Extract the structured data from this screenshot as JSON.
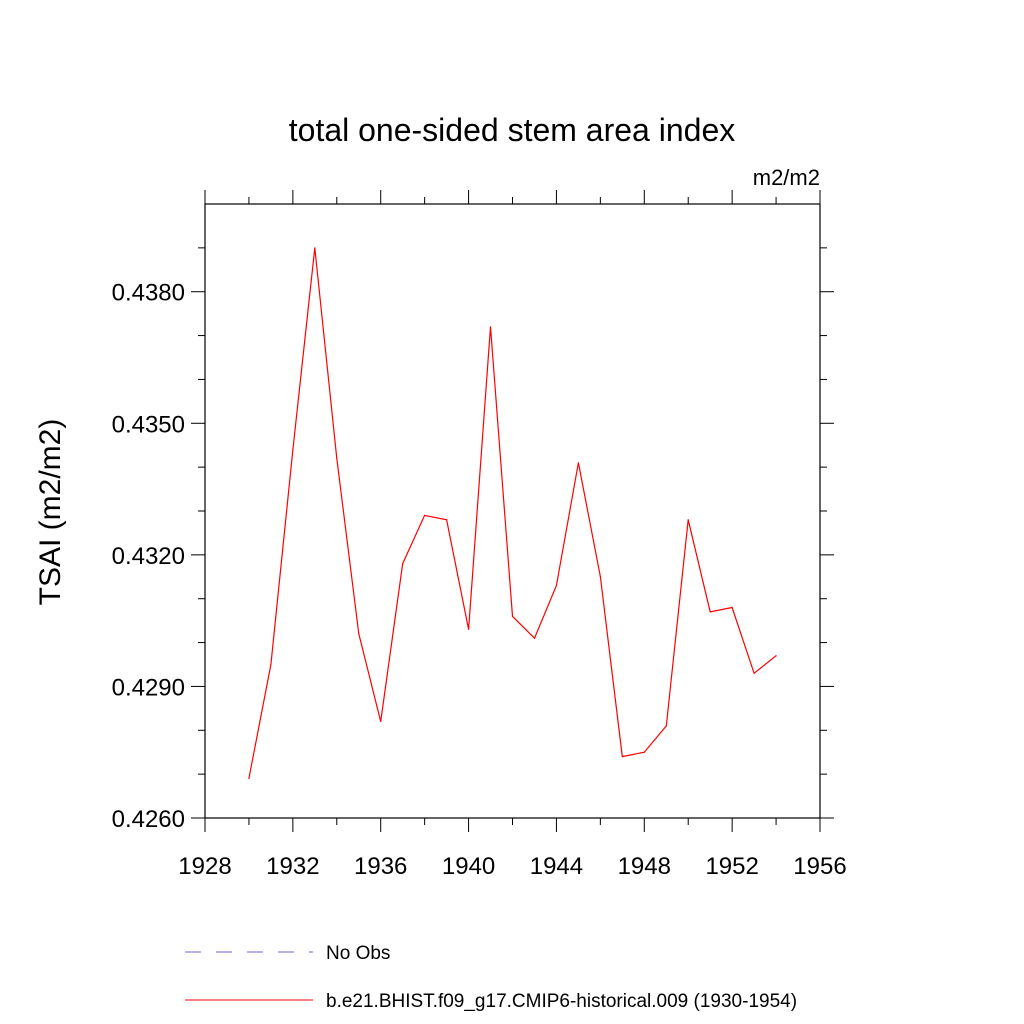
{
  "chart_data": {
    "type": "line",
    "title": "total one-sided stem area index",
    "units": "m2/m2",
    "ylabel": "TSAI  (m2/m2)",
    "xlabel": "",
    "xlim": [
      1928,
      1956
    ],
    "ylim": [
      0.426,
      0.44
    ],
    "xticks": [
      "1928",
      "1932",
      "1936",
      "1940",
      "1944",
      "1948",
      "1952",
      "1956"
    ],
    "yticks": [
      "0.4260",
      "0.4290",
      "0.4320",
      "0.4350",
      "0.4380"
    ],
    "series": [
      {
        "name": "b.e21.BHIST.f09_g17.CMIP6-historical.009 (1930-1954)",
        "color": "#ff0000",
        "x": [
          1930,
          1931,
          1932,
          1933,
          1934,
          1935,
          1936,
          1937,
          1938,
          1939,
          1940,
          1941,
          1942,
          1943,
          1944,
          1945,
          1946,
          1947,
          1948,
          1949,
          1950,
          1951,
          1952,
          1953,
          1954
        ],
        "y": [
          0.4269,
          0.4295,
          0.4344,
          0.439,
          0.4342,
          0.4302,
          0.4282,
          0.4318,
          0.4329,
          0.4328,
          0.4303,
          0.4372,
          0.4306,
          0.4301,
          0.4313,
          0.4341,
          0.4315,
          0.4274,
          0.4275,
          0.4281,
          0.4328,
          0.4307,
          0.4308,
          0.4293,
          0.4297
        ]
      }
    ],
    "legend": [
      {
        "label": "No Obs",
        "color": "#6666cc",
        "style": "dashed"
      },
      {
        "label": "b.e21.BHIST.f09_g17.CMIP6-historical.009 (1930-1954)",
        "color": "#ff0000",
        "style": "solid"
      }
    ],
    "legend_position": "bottom",
    "grid": false
  }
}
